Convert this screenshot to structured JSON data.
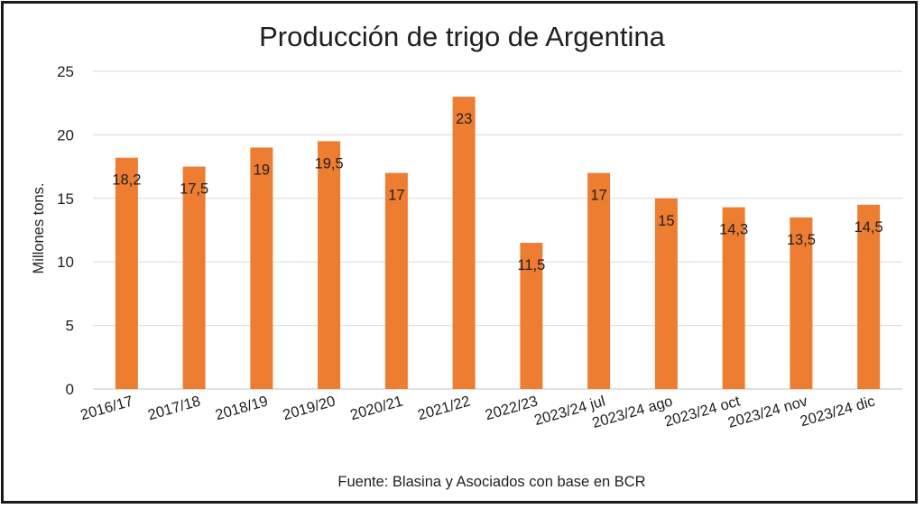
{
  "chart_data": {
    "type": "bar",
    "title": "Producción de trigo de Argentina",
    "ylabel": "Millones tons.",
    "xlabel": "",
    "source": "Fuente: Blasina y Asociados con base en BCR",
    "ylim": [
      0,
      25
    ],
    "yticks": [
      0,
      5,
      10,
      15,
      20,
      25
    ],
    "grid": true,
    "categories": [
      "2016/17",
      "2017/18",
      "2018/19",
      "2019/20",
      "2020/21",
      "2021/22",
      "2022/23",
      "2023/24 jul",
      "2023/24 ago",
      "2023/24 oct",
      "2023/24 nov",
      "2023/24 dic"
    ],
    "values": [
      18.2,
      17.5,
      19,
      19.5,
      17,
      23,
      11.5,
      17,
      15,
      14.3,
      13.5,
      14.5
    ],
    "data_labels": [
      "18,2",
      "17,5",
      "19",
      "19,5",
      "17",
      "23",
      "11,5",
      "17",
      "15",
      "14,3",
      "13,5",
      "14,5"
    ],
    "colors": {
      "bar": "#ED7D31",
      "grid": "#D9D9D9",
      "axis": "#BFBFBF"
    }
  }
}
